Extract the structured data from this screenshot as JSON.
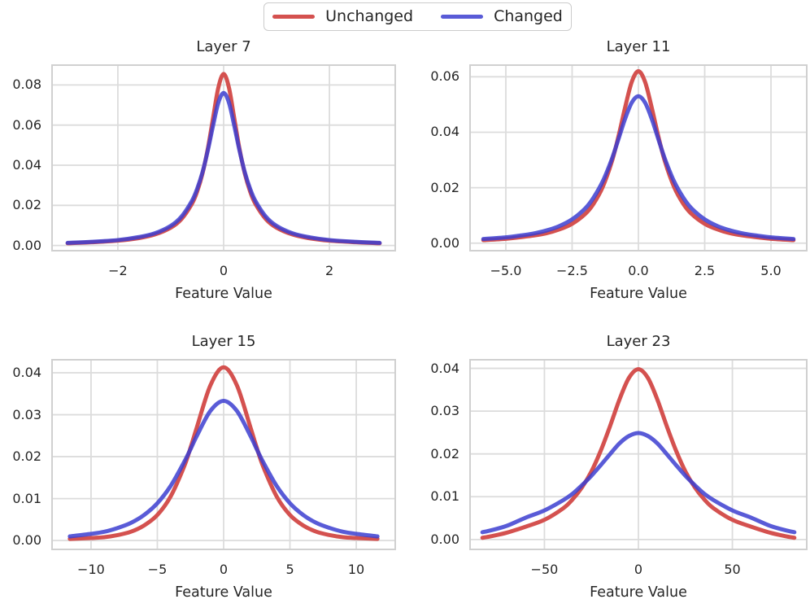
{
  "legend": {
    "items": [
      {
        "label": "Unchanged",
        "color": "#d4514f"
      },
      {
        "label": "Changed",
        "color": "#595bd7"
      }
    ]
  },
  "styles": {
    "grid_color": "#dcdcdc",
    "spine_color": "#d0d0d0",
    "text_color": "#262626",
    "unchanged_stroke": "#d4514f",
    "changed_stroke": "#3c3ed0",
    "changed_stroke_opacity": 0.85,
    "line_width": 5
  },
  "chart_data": [
    {
      "type": "line",
      "title": "Layer 7",
      "xlabel": "Feature Value",
      "legend_position": "upper center (figure)",
      "grid": true,
      "xlim": [
        -3.26,
        3.26
      ],
      "ylim": [
        -0.003,
        0.0903
      ],
      "xticks": {
        "values": [
          -2,
          0,
          2
        ],
        "labels": [
          "−2",
          "0",
          "2"
        ]
      },
      "yticks": {
        "values": [
          0,
          0.02,
          0.04,
          0.06,
          0.08
        ],
        "labels": [
          "0.00",
          "0.02",
          "0.04",
          "0.06",
          "0.08"
        ]
      },
      "series": [
        {
          "name": "Unchanged",
          "x": [
            -2.95,
            -2.5,
            -2,
            -1.6,
            -1.3,
            -1,
            -0.8,
            -0.6,
            -0.5,
            -0.4,
            -0.3,
            -0.2,
            -0.1,
            0,
            0.1,
            0.2,
            0.3,
            0.4,
            0.5,
            0.6,
            0.8,
            1,
            1.3,
            1.6,
            2,
            2.5,
            2.95
          ],
          "y": [
            0.0011,
            0.0016,
            0.0024,
            0.0037,
            0.0055,
            0.0089,
            0.0131,
            0.0208,
            0.027,
            0.0359,
            0.0481,
            0.0635,
            0.0787,
            0.0855,
            0.0787,
            0.0635,
            0.0481,
            0.0359,
            0.027,
            0.0208,
            0.0131,
            0.0089,
            0.0055,
            0.0037,
            0.0024,
            0.0016,
            0.0011
          ]
        },
        {
          "name": "Changed",
          "x": [
            -2.95,
            -2.5,
            -2,
            -1.6,
            -1.3,
            -1,
            -0.8,
            -0.6,
            -0.5,
            -0.4,
            -0.3,
            -0.2,
            -0.1,
            0,
            0.1,
            0.2,
            0.3,
            0.4,
            0.5,
            0.6,
            0.8,
            1,
            1.3,
            1.6,
            2,
            2.5,
            2.95
          ],
          "y": [
            0.0013,
            0.0018,
            0.0027,
            0.0042,
            0.0061,
            0.0098,
            0.0143,
            0.0222,
            0.0283,
            0.0365,
            0.0473,
            0.0598,
            0.0712,
            0.076,
            0.0712,
            0.0598,
            0.0473,
            0.0365,
            0.0283,
            0.0222,
            0.0143,
            0.0098,
            0.0061,
            0.0042,
            0.0027,
            0.0018,
            0.0013
          ]
        }
      ]
    },
    {
      "type": "line",
      "title": "Layer 11",
      "xlabel": "Feature Value",
      "grid": true,
      "xlim": [
        -6.38,
        6.38
      ],
      "ylim": [
        -0.003,
        0.0645
      ],
      "xticks": {
        "values": [
          -5,
          -2.5,
          0,
          2.5,
          5
        ],
        "labels": [
          "−5.0",
          "−2.5",
          "0.0",
          "2.5",
          "5.0"
        ]
      },
      "yticks": {
        "values": [
          0,
          0.02,
          0.04,
          0.06
        ],
        "labels": [
          "0.00",
          "0.02",
          "0.04",
          "0.06"
        ]
      },
      "series": [
        {
          "name": "Unchanged",
          "x": [
            -5.85,
            -5,
            -4.5,
            -4,
            -3.5,
            -3,
            -2.5,
            -2,
            -1.7,
            -1.35,
            -1,
            -0.75,
            -0.5,
            -0.25,
            0,
            0.25,
            0.5,
            0.75,
            1,
            1.35,
            1.7,
            2,
            2.5,
            3,
            3.5,
            4,
            4.5,
            5,
            5.85
          ],
          "y": [
            0.0011,
            0.0016,
            0.0021,
            0.0027,
            0.0035,
            0.0049,
            0.007,
            0.0106,
            0.0141,
            0.0202,
            0.0295,
            0.0386,
            0.049,
            0.0582,
            0.062,
            0.0582,
            0.049,
            0.0386,
            0.0295,
            0.0202,
            0.0141,
            0.0106,
            0.007,
            0.0049,
            0.0035,
            0.0027,
            0.0021,
            0.0016,
            0.0011
          ]
        },
        {
          "name": "Changed",
          "x": [
            -5.85,
            -5,
            -4.5,
            -4,
            -3.5,
            -3,
            -2.5,
            -2,
            -1.7,
            -1.35,
            -1,
            -0.75,
            -0.5,
            -0.25,
            0,
            0.25,
            0.5,
            0.75,
            1,
            1.35,
            1.7,
            2,
            2.5,
            3,
            3.5,
            4,
            4.5,
            5,
            5.85
          ],
          "y": [
            0.0015,
            0.0021,
            0.0027,
            0.0034,
            0.0045,
            0.0061,
            0.0086,
            0.0126,
            0.0163,
            0.0222,
            0.0304,
            0.0376,
            0.0449,
            0.0507,
            0.053,
            0.0507,
            0.0449,
            0.0376,
            0.0304,
            0.0222,
            0.0163,
            0.0126,
            0.0086,
            0.0061,
            0.0045,
            0.0034,
            0.0027,
            0.0021,
            0.0015
          ]
        }
      ]
    },
    {
      "type": "line",
      "title": "Layer 15",
      "xlabel": "Feature Value",
      "grid": true,
      "xlim": [
        -13,
        13
      ],
      "ylim": [
        -0.0023,
        0.0433
      ],
      "xticks": {
        "values": [
          -10,
          -5,
          0,
          5,
          10
        ],
        "labels": [
          "−10",
          "−5",
          "0",
          "5",
          "10"
        ]
      },
      "yticks": {
        "values": [
          0,
          0.01,
          0.02,
          0.03,
          0.04
        ],
        "labels": [
          "0.00",
          "0.01",
          "0.02",
          "0.03",
          "0.04"
        ]
      },
      "series": [
        {
          "name": "Unchanged",
          "x": [
            -11.6,
            -10,
            -9,
            -8,
            -7,
            -6,
            -5,
            -4,
            -3,
            -2.45,
            -2,
            -1,
            0,
            1,
            2,
            2.45,
            3,
            4,
            5,
            6,
            7,
            8,
            9,
            10,
            11.6
          ],
          "y": [
            0.0004,
            0.0006,
            0.0008,
            0.0013,
            0.0021,
            0.0036,
            0.0061,
            0.0105,
            0.0175,
            0.0226,
            0.0272,
            0.037,
            0.0413,
            0.037,
            0.0272,
            0.0226,
            0.0175,
            0.0105,
            0.0061,
            0.0036,
            0.0021,
            0.0013,
            0.0008,
            0.0006,
            0.0004
          ]
        },
        {
          "name": "Changed",
          "x": [
            -11.6,
            -10,
            -9,
            -8,
            -7,
            -6,
            -5,
            -4,
            -3,
            -2.45,
            -2,
            -1,
            0,
            1,
            2,
            2.45,
            3,
            4,
            5,
            6,
            7,
            8,
            9,
            10,
            11.6
          ],
          "y": [
            0.001,
            0.0016,
            0.0021,
            0.003,
            0.0042,
            0.0061,
            0.0089,
            0.013,
            0.0186,
            0.0221,
            0.0251,
            0.0309,
            0.0333,
            0.0309,
            0.0251,
            0.0221,
            0.0186,
            0.013,
            0.0089,
            0.0061,
            0.0042,
            0.003,
            0.0021,
            0.0016,
            0.001
          ]
        }
      ]
    },
    {
      "type": "line",
      "title": "Layer 23",
      "xlabel": "Feature Value",
      "grid": true,
      "xlim": [
        -90,
        90
      ],
      "ylim": [
        -0.0025,
        0.0422
      ],
      "xticks": {
        "values": [
          -50,
          0,
          50
        ],
        "labels": [
          "−50",
          "0",
          "50"
        ]
      },
      "yticks": {
        "values": [
          0,
          0.01,
          0.02,
          0.03,
          0.04
        ],
        "labels": [
          "0.00",
          "0.01",
          "0.02",
          "0.03",
          "0.04"
        ]
      },
      "series": [
        {
          "name": "Unchanged",
          "x": [
            -83,
            -78,
            -70,
            -60,
            -50,
            -40,
            -35,
            -30,
            -25,
            -20,
            -15,
            -10,
            -5,
            0,
            5,
            10,
            15,
            20,
            25,
            30,
            35,
            40,
            50,
            60,
            70,
            78,
            83
          ],
          "y": [
            0.0004,
            0.0008,
            0.0016,
            0.003,
            0.0046,
            0.0073,
            0.0094,
            0.0122,
            0.0159,
            0.0208,
            0.0266,
            0.0328,
            0.0378,
            0.0398,
            0.0378,
            0.0328,
            0.0266,
            0.0208,
            0.0159,
            0.0122,
            0.0094,
            0.0073,
            0.0046,
            0.003,
            0.0016,
            0.0008,
            0.0004
          ]
        },
        {
          "name": "Changed",
          "x": [
            -83,
            -78,
            -70,
            -60,
            -50,
            -40,
            -35,
            -30,
            -25,
            -20,
            -15,
            -10,
            -5,
            0,
            5,
            10,
            15,
            20,
            25,
            30,
            35,
            40,
            50,
            60,
            70,
            78,
            83
          ],
          "y": [
            0.0017,
            0.0022,
            0.0032,
            0.0051,
            0.0068,
            0.0092,
            0.0107,
            0.0127,
            0.0149,
            0.0174,
            0.02,
            0.0225,
            0.0242,
            0.0249,
            0.0242,
            0.0225,
            0.02,
            0.0174,
            0.0149,
            0.0127,
            0.0107,
            0.0092,
            0.0068,
            0.0051,
            0.0032,
            0.0022,
            0.0017
          ]
        }
      ]
    }
  ]
}
